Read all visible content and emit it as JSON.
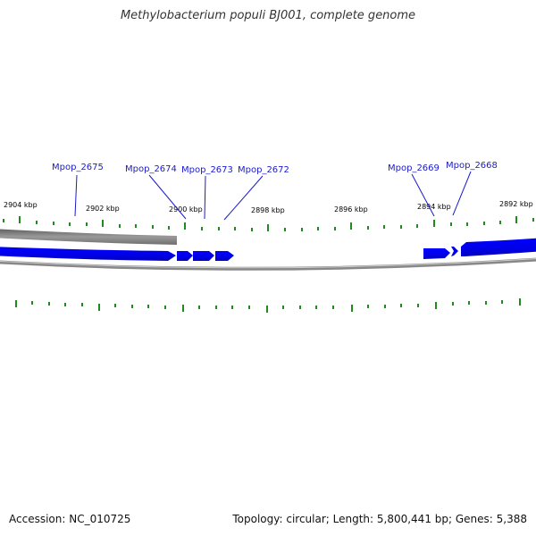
{
  "title": "Methylobacterium populi BJ001, complete genome",
  "footer": {
    "accession": "Accession: NC_010725",
    "summary": "Topology: circular; Length: 5,800,441 bp; Genes: 5,388"
  },
  "scale_labels": [
    "2904 kbp",
    "2902 kbp",
    "2900 kbp",
    "2898 kbp",
    "2896 kbp",
    "2894 kbp",
    "2892 kbp"
  ],
  "gene_labels": [
    "Mpop_2675",
    "Mpop_2674",
    "Mpop_2673",
    "Mpop_2672",
    "Mpop_2669",
    "Mpop_2668"
  ],
  "colors": {
    "gene": "#0000ee",
    "ring": "#7a7a7a",
    "tick": "#1f8a1f",
    "label": "#1a1ad0"
  }
}
